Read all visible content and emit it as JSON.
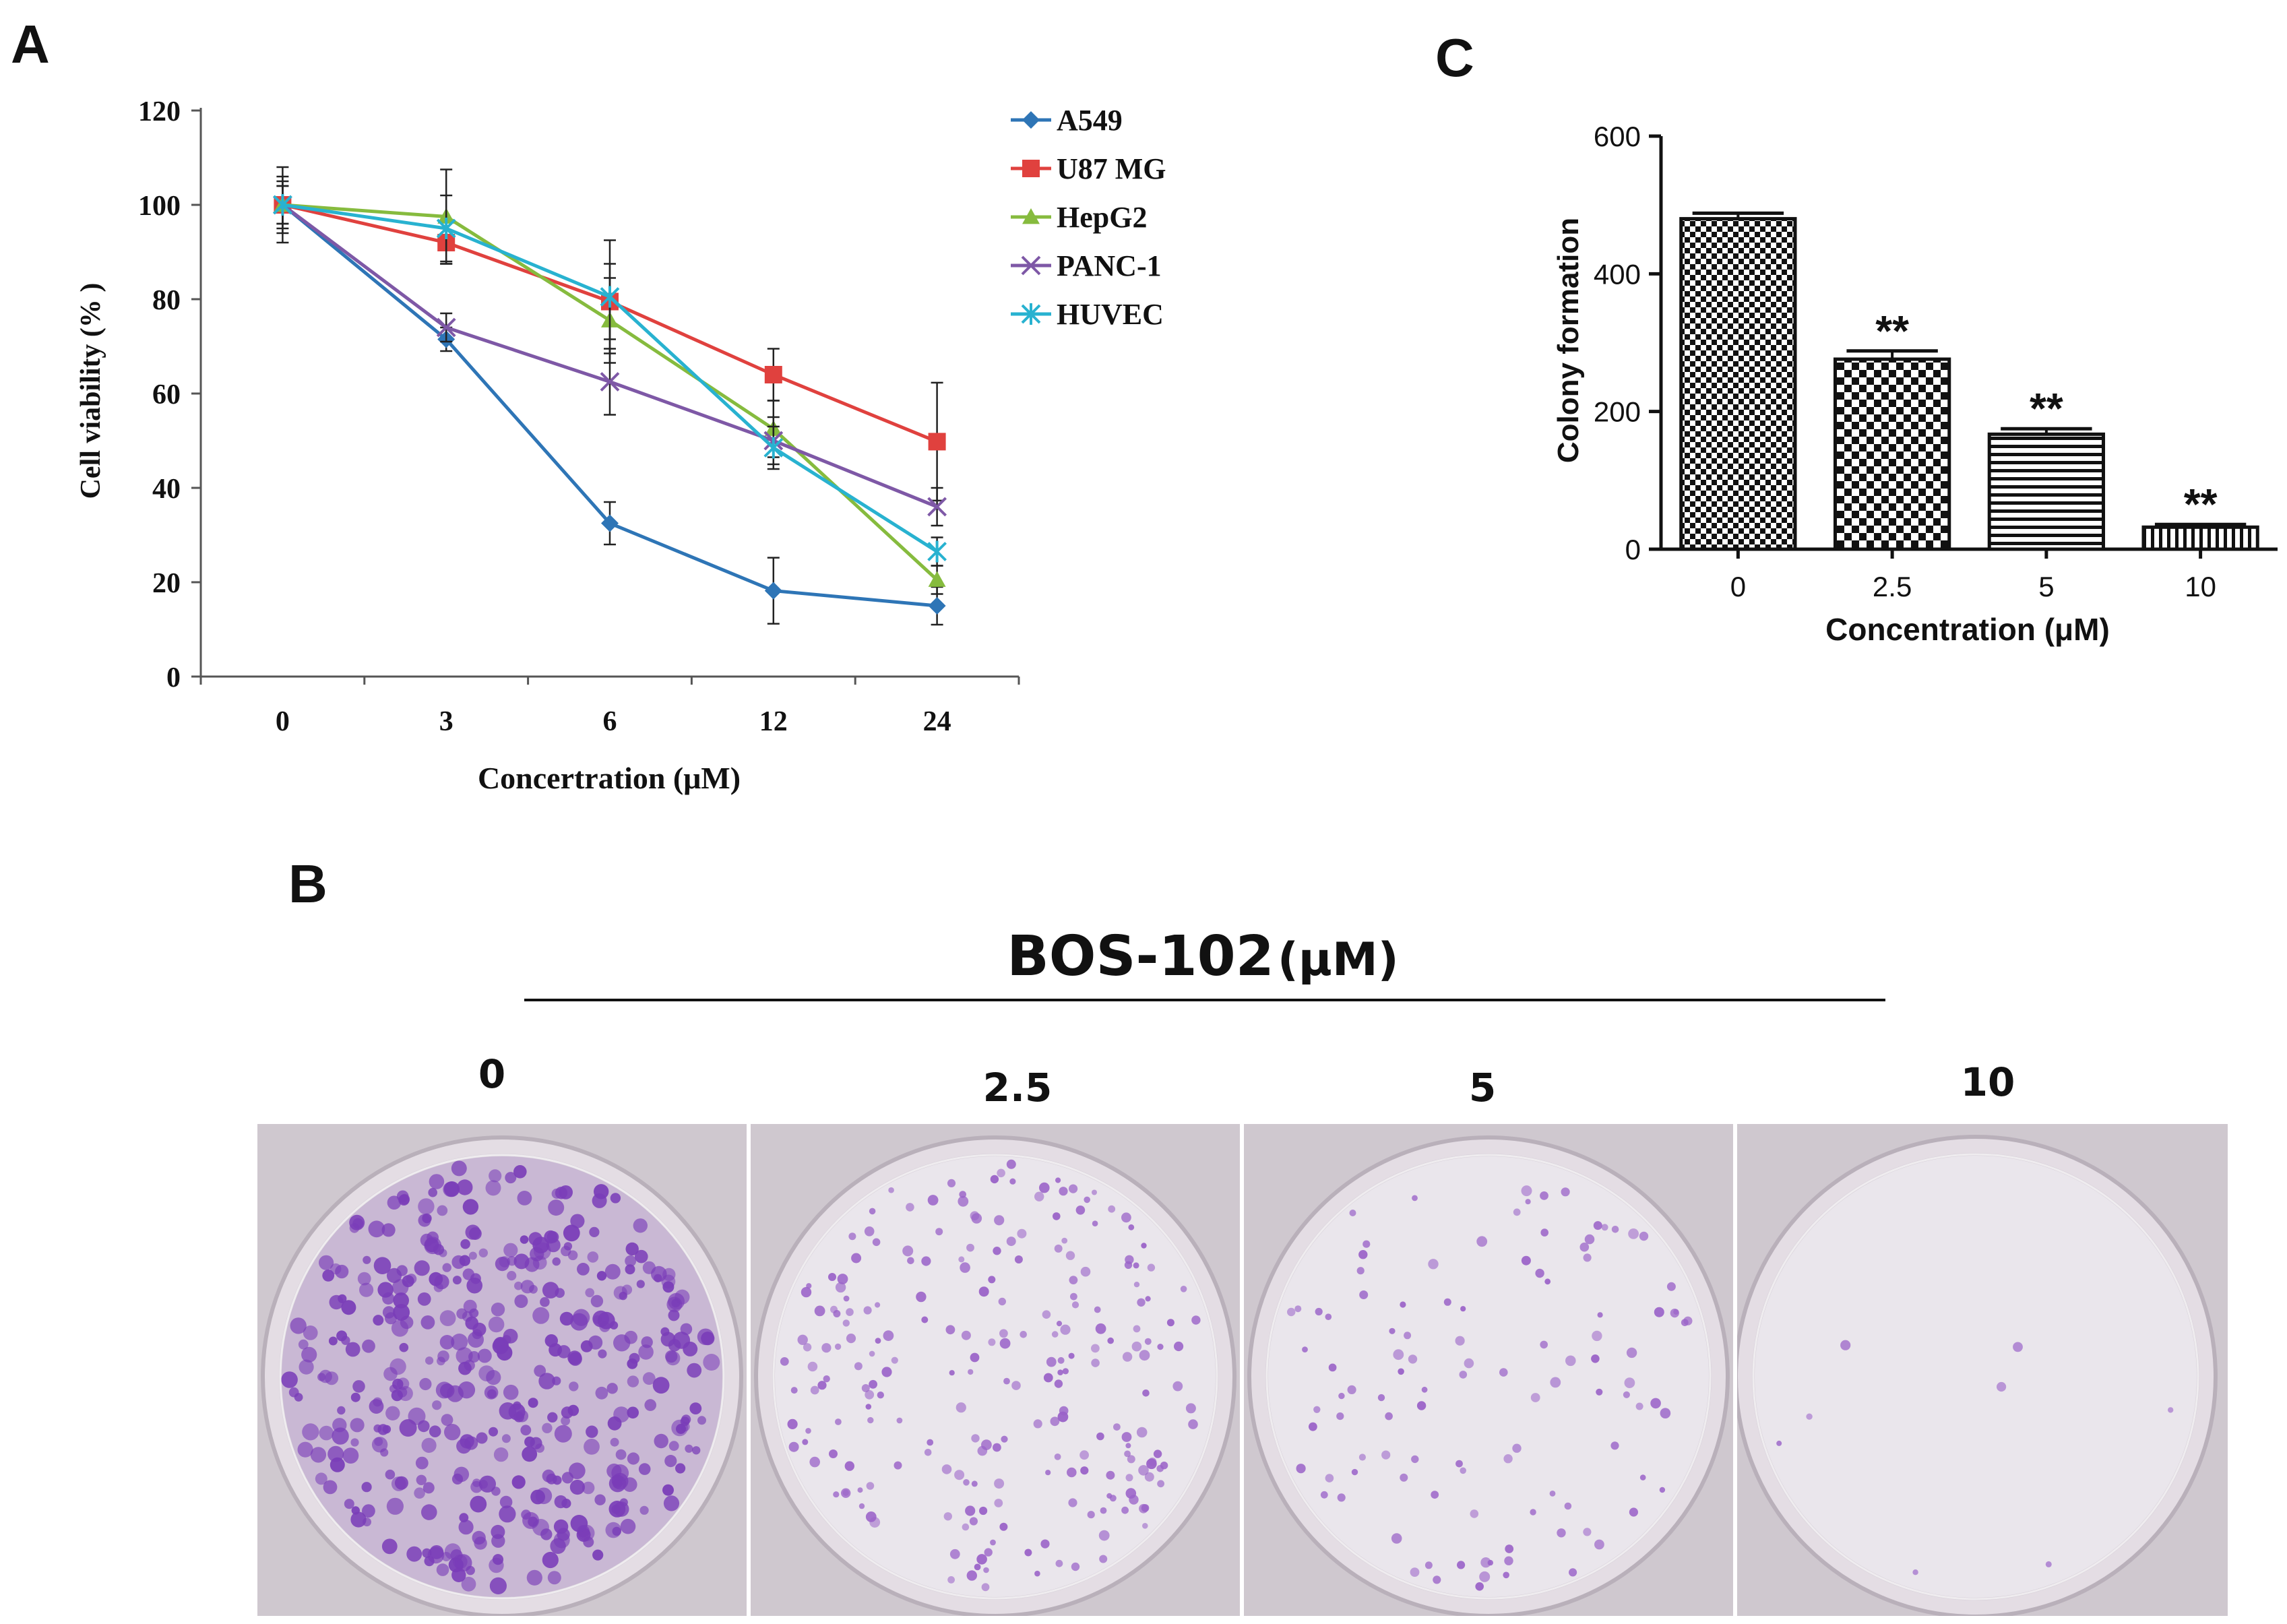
{
  "panels": {
    "a": "A",
    "b": "B",
    "c": "C"
  },
  "chart_data": [
    {
      "type": "line",
      "panel": "A",
      "xlabel": "Concertration (μM)",
      "ylabel": "Cell viability (% )",
      "x": [
        "0",
        "3",
        "6",
        "12",
        "24"
      ],
      "ylim": [
        0,
        120
      ],
      "yticks": [
        "0",
        "20",
        "40",
        "60",
        "80",
        "100",
        "120"
      ],
      "legend_position": "top-right",
      "series": [
        {
          "name": "A549",
          "color": "#2e75b6",
          "marker": "diamond",
          "values": [
            100,
            71.5,
            32.5,
            18.2,
            15.0
          ],
          "errors": [
            8,
            2.5,
            4.5,
            7,
            4
          ]
        },
        {
          "name": "U87 MG",
          "color": "#e0413e",
          "marker": "square",
          "values": [
            100,
            92.0,
            79.5,
            64.0,
            49.8
          ],
          "errors": [
            5,
            4.5,
            8,
            5.5,
            12.5
          ]
        },
        {
          "name": "HepG2",
          "color": "#86bb3e",
          "marker": "triangle",
          "values": [
            100,
            97.5,
            75.5,
            52.5,
            20.5
          ],
          "errors": [
            4,
            10,
            9,
            6,
            3
          ]
        },
        {
          "name": "PANC-1",
          "color": "#7e58a6",
          "marker": "x",
          "values": [
            100,
            74.0,
            62.5,
            50.0,
            36.0
          ],
          "errors": [
            6,
            3,
            7,
            5,
            4
          ]
        },
        {
          "name": "HUVEC",
          "color": "#28b2d0",
          "marker": "star",
          "values": [
            100,
            95.0,
            80.5,
            48.5,
            26.5
          ],
          "errors": [
            4,
            7,
            12,
            4.5,
            3
          ]
        }
      ]
    },
    {
      "type": "bar",
      "panel": "C",
      "xlabel": "Concentration (μM)",
      "ylabel": "Colony formation",
      "categories": [
        "0",
        "2.5",
        "5",
        "10"
      ],
      "values": [
        480,
        276,
        167,
        32
      ],
      "errors": [
        8,
        12,
        8,
        4
      ],
      "annotations": [
        "",
        "**",
        "**",
        "**"
      ],
      "ylim": [
        0,
        600
      ],
      "yticks": [
        "0",
        "200",
        "400",
        "600"
      ]
    }
  ],
  "photo_panel": {
    "title": "BOS-102",
    "unit": "(μM)",
    "labels": [
      "0",
      "2.5",
      "5",
      "10"
    ],
    "colony_density": [
      420,
      230,
      110,
      8
    ]
  }
}
